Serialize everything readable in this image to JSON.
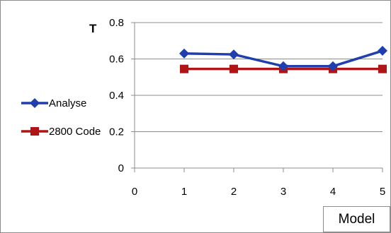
{
  "chart_data": {
    "type": "line",
    "ylabel": "T",
    "xlabel": "Model",
    "xlim": [
      0,
      5
    ],
    "ylim": [
      0,
      0.8
    ],
    "x_ticks": [
      "0",
      "1",
      "2",
      "3",
      "4",
      "5"
    ],
    "y_ticks": [
      "0",
      "0.2",
      "0.4",
      "0.6",
      "0.8"
    ],
    "grid": "horizontal",
    "legend_position": "left",
    "series": [
      {
        "name": "Analyse",
        "color": "#1f3fae",
        "marker": "diamond",
        "x": [
          1,
          2,
          3,
          4,
          5
        ],
        "values": [
          0.63,
          0.625,
          0.56,
          0.56,
          0.645
        ]
      },
      {
        "name": "2800 Code",
        "color": "#b01515",
        "marker": "square",
        "x": [
          1,
          2,
          3,
          4,
          5
        ],
        "values": [
          0.545,
          0.545,
          0.545,
          0.545,
          0.545
        ]
      }
    ]
  }
}
